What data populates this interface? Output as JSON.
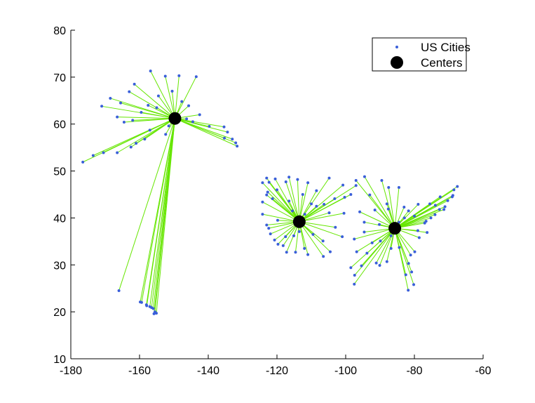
{
  "chart_data": {
    "type": "scatter",
    "title": "",
    "xlabel": "",
    "ylabel": "",
    "xlim": [
      -180,
      -60
    ],
    "ylim": [
      10,
      80
    ],
    "xticks": [
      -180,
      -160,
      -140,
      -120,
      -100,
      -80,
      -60
    ],
    "yticks": [
      10,
      20,
      30,
      40,
      50,
      60,
      70,
      80
    ],
    "grid": false,
    "legend_position": "top-right",
    "legend": [
      "US Cities",
      "Centers"
    ],
    "colors": {
      "cities": "#3a5fd9",
      "lines": "#66e600",
      "centers": "#000000",
      "axes": "#000000"
    },
    "series": [
      {
        "name": "Centers",
        "points": [
          [
            -149.7,
            61.2
          ],
          [
            -113.5,
            39.2
          ],
          [
            -85.7,
            37.8
          ]
        ]
      },
      {
        "name": "US Cities",
        "clusters": [
          {
            "center_index": 0,
            "points": [
              [
                -176.5,
                51.9
              ],
              [
                -173.5,
                53.3
              ],
              [
                -170.5,
                53.9
              ],
              [
                -166.5,
                53.9
              ],
              [
                -162.5,
                55.1
              ],
              [
                -161.0,
                55.9
              ],
              [
                -158.5,
                56.8
              ],
              [
                -157.0,
                58.7
              ],
              [
                -164.5,
                60.4
              ],
              [
                -162.0,
                60.8
              ],
              [
                -165.5,
                64.5
              ],
              [
                -163.0,
                66.9
              ],
              [
                -161.5,
                68.5
              ],
              [
                -156.8,
                71.3
              ],
              [
                -152.5,
                70.2
              ],
              [
                -148.5,
                70.3
              ],
              [
                -143.5,
                70.1
              ],
              [
                -147.7,
                64.8
              ],
              [
                -145.7,
                63.9
              ],
              [
                -142.5,
                62.0
              ],
              [
                -144.5,
                60.5
              ],
              [
                -146.3,
                61.1
              ],
              [
                -139.7,
                59.5
              ],
              [
                -135.4,
                59.4
              ],
              [
                -134.4,
                58.3
              ],
              [
                -133.0,
                56.8
              ],
              [
                -132.0,
                56.0
              ],
              [
                -131.6,
                55.3
              ],
              [
                -135.3,
                57.0
              ],
              [
                -151.5,
                59.6
              ],
              [
                -152.4,
                57.8
              ],
              [
                -168.5,
                65.5
              ],
              [
                -171.0,
                63.8
              ],
              [
                -166.5,
                61.5
              ],
              [
                -159.5,
                62.5
              ],
              [
                -154.5,
                66.0
              ],
              [
                -150.5,
                67.0
              ],
              [
                -157.5,
                64.0
              ],
              [
                -155.0,
                63.5
              ],
              [
                -166.0,
                24.5
              ],
              [
                -159.8,
                22.1
              ],
              [
                -159.4,
                22.0
              ],
              [
                -158.0,
                21.5
              ],
              [
                -157.9,
                21.3
              ],
              [
                -157.0,
                21.1
              ],
              [
                -156.5,
                20.9
              ],
              [
                -156.0,
                20.7
              ],
              [
                -155.5,
                20.0
              ],
              [
                -155.1,
                19.7
              ],
              [
                -155.8,
                19.6
              ]
            ]
          },
          {
            "center_index": 1,
            "points": [
              [
                -124.2,
                47.5
              ],
              [
                -123.0,
                48.5
              ],
              [
                -122.3,
                47.6
              ],
              [
                -120.5,
                48.3
              ],
              [
                -117.4,
                47.7
              ],
              [
                -116.5,
                48.7
              ],
              [
                -114.0,
                48.2
              ],
              [
                -111.0,
                47.5
              ],
              [
                -108.5,
                45.8
              ],
              [
                -104.8,
                48.5
              ],
              [
                -100.8,
                47.0
              ],
              [
                -97.0,
                46.9
              ],
              [
                -98.5,
                45.0
              ],
              [
                -100.3,
                44.4
              ],
              [
                -103.2,
                44.1
              ],
              [
                -106.3,
                42.9
              ],
              [
                -104.8,
                41.1
              ],
              [
                -108.5,
                42.5
              ],
              [
                -111.9,
                40.8
              ],
              [
                -113.5,
                37.1
              ],
              [
                -112.0,
                33.5
              ],
              [
                -111.0,
                32.2
              ],
              [
                -114.6,
                32.7
              ],
              [
                -117.2,
                32.7
              ],
              [
                -118.2,
                34.1
              ],
              [
                -119.7,
                34.4
              ],
              [
                -120.7,
                35.3
              ],
              [
                -121.9,
                36.6
              ],
              [
                -122.4,
                37.8
              ],
              [
                -123.0,
                38.5
              ],
              [
                -124.2,
                40.8
              ],
              [
                -124.2,
                43.4
              ],
              [
                -123.0,
                44.9
              ],
              [
                -122.7,
                45.5
              ],
              [
                -121.3,
                44.1
              ],
              [
                -119.8,
                39.5
              ],
              [
                -115.1,
                36.2
              ],
              [
                -116.5,
                43.6
              ],
              [
                -112.5,
                45.0
              ],
              [
                -110.0,
                43.0
              ],
              [
                -106.6,
                35.1
              ],
              [
                -106.5,
                31.8
              ],
              [
                -104.5,
                32.8
              ],
              [
                -103.0,
                38.0
              ],
              [
                -101.0,
                36.0
              ],
              [
                -100.5,
                41.0
              ],
              [
                -109.5,
                36.5
              ],
              [
                -117.5,
                36.0
              ],
              [
                -120.0,
                46.0
              ],
              [
                -115.5,
                41.5
              ]
            ]
          },
          {
            "center_index": 2,
            "points": [
              [
                -97.0,
                48.0
              ],
              [
                -94.5,
                48.8
              ],
              [
                -93.0,
                44.9
              ],
              [
                -89.5,
                48.0
              ],
              [
                -87.5,
                46.5
              ],
              [
                -84.5,
                46.5
              ],
              [
                -83.0,
                42.3
              ],
              [
                -87.6,
                41.9
              ],
              [
                -90.2,
                38.6
              ],
              [
                -94.6,
                39.1
              ],
              [
                -95.9,
                41.3
              ],
              [
                -96.8,
                32.8
              ],
              [
                -95.4,
                29.8
              ],
              [
                -97.4,
                27.8
              ],
              [
                -97.5,
                25.9
              ],
              [
                -98.5,
                29.4
              ],
              [
                -93.8,
                32.5
              ],
              [
                -91.1,
                30.4
              ],
              [
                -90.1,
                29.9
              ],
              [
                -88.0,
                30.7
              ],
              [
                -86.8,
                33.5
              ],
              [
                -84.4,
                33.7
              ],
              [
                -81.7,
                30.3
              ],
              [
                -82.5,
                27.9
              ],
              [
                -80.2,
                25.8
              ],
              [
                -81.8,
                24.6
              ],
              [
                -80.8,
                28.5
              ],
              [
                -81.1,
                32.1
              ],
              [
                -79.9,
                32.8
              ],
              [
                -78.6,
                35.8
              ],
              [
                -76.3,
                36.9
              ],
              [
                -77.0,
                38.9
              ],
              [
                -76.6,
                39.3
              ],
              [
                -75.2,
                40.0
              ],
              [
                -74.0,
                40.7
              ],
              [
                -73.9,
                42.7
              ],
              [
                -72.7,
                41.8
              ],
              [
                -71.4,
                41.8
              ],
              [
                -71.1,
                42.4
              ],
              [
                -70.3,
                43.7
              ],
              [
                -69.0,
                44.5
              ],
              [
                -68.8,
                44.8
              ],
              [
                -67.5,
                46.7
              ],
              [
                -68.5,
                46.0
              ],
              [
                -72.5,
                44.5
              ],
              [
                -75.5,
                43.0
              ],
              [
                -78.9,
                42.9
              ],
              [
                -81.7,
                41.5
              ],
              [
                -85.7,
                38.3
              ],
              [
                -86.8,
                36.2
              ],
              [
                -89.9,
                35.1
              ],
              [
                -92.3,
                34.7
              ],
              [
                -97.5,
                35.5
              ],
              [
                -94.6,
                37.0
              ],
              [
                -91.5,
                41.7
              ],
              [
                -88.0,
                43.0
              ],
              [
                -84.5,
                39.1
              ],
              [
                -82.9,
                40.0
              ],
              [
                -80.0,
                40.4
              ],
              [
                -79.0,
                37.3
              ]
            ]
          }
        ]
      }
    ]
  }
}
